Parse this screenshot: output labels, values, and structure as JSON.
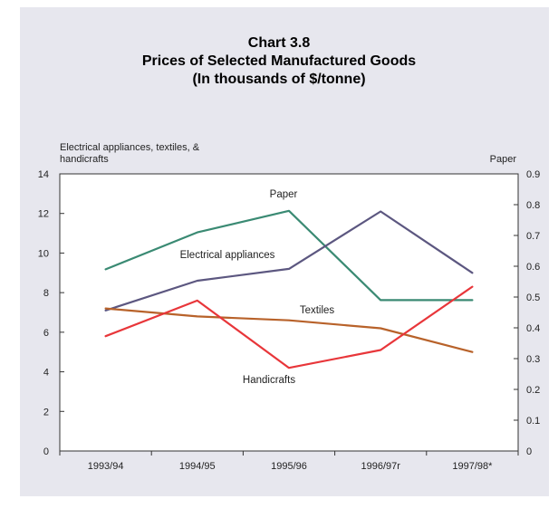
{
  "chart_data": {
    "type": "line",
    "title": "Chart 3.8",
    "subtitle_lines": [
      "Prices of Selected Manufactured Goods",
      "(In thousands of $/tonne)"
    ],
    "left_axis_label_lines": [
      "Electrical appliances, textiles, &",
      "handicrafts"
    ],
    "right_axis_label": "Paper",
    "categories": [
      "1993/94",
      "1994/95",
      "1995/96",
      "1996/97r",
      "1997/98*"
    ],
    "ylim_left": [
      0,
      14
    ],
    "yticks_left": [
      0,
      2,
      4,
      6,
      8,
      10,
      12,
      14
    ],
    "ylim_right": [
      0,
      0.9
    ],
    "yticks_right": [
      0,
      0.1,
      0.2,
      0.3,
      0.4,
      0.5,
      0.6,
      0.7,
      0.8,
      0.9
    ],
    "grid": false,
    "series": [
      {
        "name": "Paper",
        "axis": "right",
        "color": "#3a8a73",
        "values": [
          0.59,
          0.71,
          0.78,
          0.49,
          0.49
        ]
      },
      {
        "name": "Electrical appliances",
        "axis": "left",
        "color": "#5c5780",
        "values": [
          7.1,
          8.6,
          9.2,
          12.1,
          9.0
        ]
      },
      {
        "name": "Textiles",
        "axis": "left",
        "color": "#b8622a",
        "values": [
          7.2,
          6.8,
          6.6,
          6.2,
          5.0
        ]
      },
      {
        "name": "Handicrafts",
        "axis": "left",
        "color": "#e8363a",
        "values": [
          5.8,
          7.6,
          4.2,
          5.1,
          8.3
        ]
      }
    ]
  }
}
